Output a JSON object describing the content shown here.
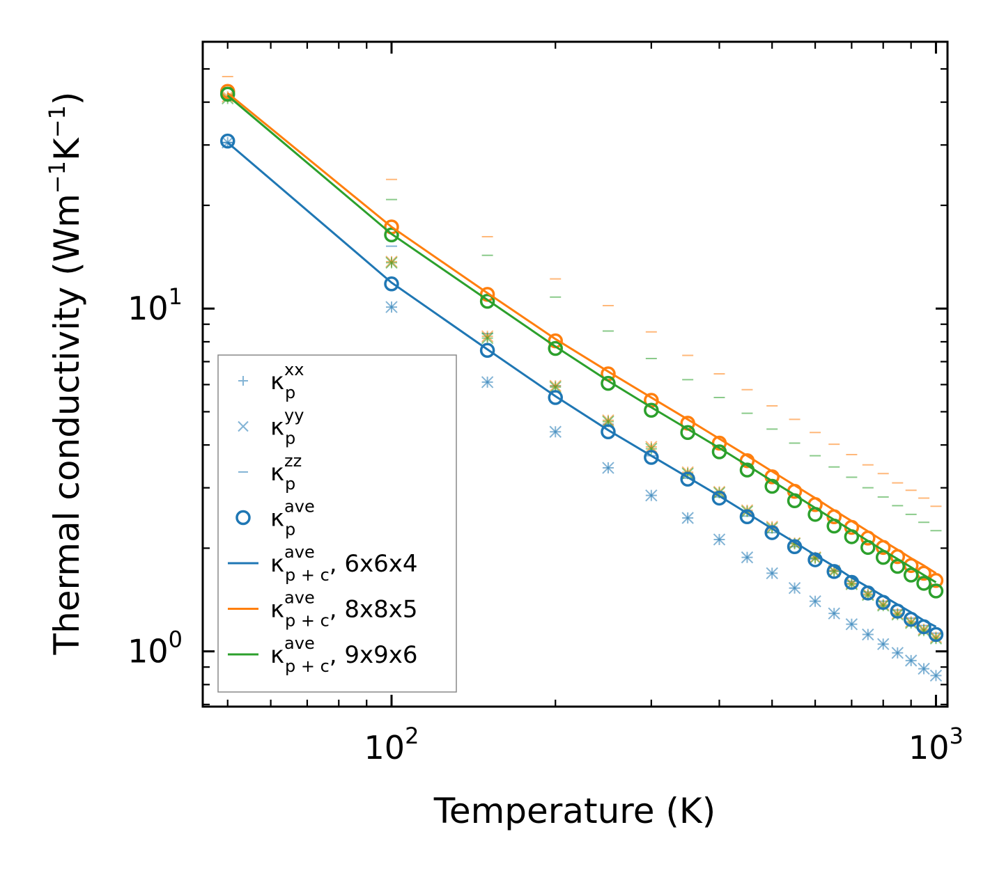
{
  "chart_data": {
    "type": "scatter",
    "title": "",
    "xlabel": "Temperature (K)",
    "ylabel": {
      "base": "Thermal conductivity (Wm",
      "exp1": "−1",
      "mid": "K",
      "exp2": "−1",
      "end": ")"
    },
    "xscale": "log",
    "yscale": "log",
    "xlim": [
      45,
      1050
    ],
    "ylim": [
      0.69,
      60
    ],
    "xticks": [
      {
        "base": "10",
        "exp": "2",
        "value": 100
      },
      {
        "base": "10",
        "exp": "3",
        "value": 1000
      }
    ],
    "yticks": [
      {
        "base": "10",
        "exp": "0",
        "value": 1
      },
      {
        "base": "10",
        "exp": "1",
        "value": 10
      }
    ],
    "temperatures": [
      50,
      100,
      150,
      200,
      250,
      300,
      350,
      400,
      450,
      500,
      550,
      600,
      650,
      700,
      750,
      800,
      850,
      900,
      950,
      1000
    ],
    "series": [
      {
        "name": "k_p^xx",
        "legend": {
          "base": "κ",
          "sub": "p",
          "sup": "xx",
          "suffix": ""
        },
        "marker": "plus",
        "color": "#1f77b4",
        "alpha": 0.55,
        "values": [
          30.5,
          10.1,
          6.1,
          4.37,
          3.43,
          2.85,
          2.45,
          2.12,
          1.88,
          1.69,
          1.53,
          1.4,
          1.29,
          1.2,
          1.12,
          1.05,
          0.99,
          0.94,
          0.89,
          0.85
        ]
      },
      {
        "name": "k_p^yy",
        "legend": {
          "base": "κ",
          "sub": "p",
          "sup": "yy",
          "suffix": ""
        },
        "marker": "x",
        "color": "#1f77b4",
        "alpha": 0.55,
        "values": [
          30.5,
          10.1,
          6.1,
          4.37,
          3.43,
          2.85,
          2.45,
          2.12,
          1.88,
          1.69,
          1.53,
          1.4,
          1.29,
          1.2,
          1.12,
          1.05,
          0.99,
          0.94,
          0.89,
          0.85
        ]
      },
      {
        "name": "k_p^zz",
        "legend": {
          "base": "κ",
          "sub": "p",
          "sup": "zz",
          "suffix": ""
        },
        "marker": "hline",
        "color": "#1f77b4",
        "alpha": 0.55,
        "values": [
          30.5,
          15.2,
          8.45,
          5.95,
          4.6,
          3.72,
          3.2,
          2.82,
          2.48,
          2.22,
          2.02,
          1.86,
          1.72,
          1.6,
          1.49,
          1.4,
          1.32,
          1.25,
          1.19,
          1.13
        ]
      },
      {
        "name": "k_p^ave",
        "legend": {
          "base": "κ",
          "sub": "p",
          "sup": "ave",
          "suffix": ""
        },
        "marker": "circle",
        "color": "#1f77b4",
        "alpha": 1,
        "values": [
          30.8,
          11.8,
          7.55,
          5.5,
          4.37,
          3.68,
          3.18,
          2.8,
          2.47,
          2.22,
          2.02,
          1.85,
          1.71,
          1.59,
          1.48,
          1.39,
          1.31,
          1.24,
          1.18,
          1.12
        ]
      },
      {
        "name": "k_p^xx 8x8x5",
        "marker": "plus",
        "color": "#ff7f0e",
        "alpha": 0.55,
        "in_legend": false,
        "values": [
          41.5,
          13.7,
          8.3,
          5.95,
          4.72,
          3.95,
          3.33,
          2.92,
          2.58,
          2.31,
          2.07,
          1.88,
          1.72,
          1.58,
          1.47,
          1.37,
          1.29,
          1.22,
          1.16,
          1.1
        ]
      },
      {
        "name": "k_p^yy 8x8x5",
        "marker": "x",
        "color": "#ff7f0e",
        "alpha": 0.55,
        "in_legend": false,
        "values": [
          41.5,
          13.7,
          8.3,
          5.95,
          4.72,
          3.95,
          3.33,
          2.92,
          2.58,
          2.31,
          2.07,
          1.88,
          1.72,
          1.58,
          1.47,
          1.37,
          1.29,
          1.22,
          1.16,
          1.1
        ]
      },
      {
        "name": "k_p^zz 8x8x5",
        "marker": "hline",
        "color": "#ff7f0e",
        "alpha": 0.55,
        "in_legend": false,
        "values": [
          47.5,
          23.8,
          16.2,
          12.2,
          10.2,
          8.55,
          7.3,
          6.45,
          5.8,
          5.2,
          4.75,
          4.35,
          4.02,
          3.75,
          3.5,
          3.3,
          3.1,
          2.95,
          2.8,
          2.65
        ]
      },
      {
        "name": "k_p^ave 8x8x5",
        "marker": "circle",
        "color": "#ff7f0e",
        "alpha": 1,
        "in_legend": false,
        "values": [
          43.0,
          17.3,
          11.0,
          8.05,
          6.45,
          5.4,
          4.63,
          4.05,
          3.6,
          3.23,
          2.93,
          2.68,
          2.47,
          2.3,
          2.14,
          2.01,
          1.89,
          1.78,
          1.69,
          1.61
        ]
      },
      {
        "name": "k_p^xx 9x9x6",
        "marker": "plus",
        "color": "#2ca02c",
        "alpha": 0.55,
        "in_legend": false,
        "values": [
          41.0,
          13.6,
          8.2,
          5.9,
          4.68,
          3.9,
          3.3,
          2.9,
          2.56,
          2.29,
          2.06,
          1.87,
          1.71,
          1.57,
          1.46,
          1.36,
          1.28,
          1.21,
          1.15,
          1.09
        ]
      },
      {
        "name": "k_p^yy 9x9x6",
        "marker": "x",
        "color": "#2ca02c",
        "alpha": 0.55,
        "in_legend": false,
        "values": [
          41.0,
          13.6,
          8.2,
          5.9,
          4.68,
          3.9,
          3.3,
          2.9,
          2.56,
          2.29,
          2.06,
          1.87,
          1.71,
          1.57,
          1.46,
          1.36,
          1.28,
          1.21,
          1.15,
          1.09
        ]
      },
      {
        "name": "k_p^zz 9x9x6",
        "marker": "hline",
        "color": "#2ca02c",
        "alpha": 0.55,
        "in_legend": false,
        "values": [
          44.0,
          20.8,
          14.3,
          10.8,
          8.6,
          7.15,
          6.2,
          5.5,
          4.95,
          4.45,
          4.05,
          3.72,
          3.45,
          3.22,
          3.0,
          2.82,
          2.66,
          2.51,
          2.38,
          2.25
        ]
      },
      {
        "name": "k_p^ave 9x9x6",
        "marker": "circle",
        "color": "#2ca02c",
        "alpha": 1,
        "in_legend": false,
        "values": [
          42.2,
          16.4,
          10.5,
          7.65,
          6.05,
          5.05,
          4.35,
          3.82,
          3.38,
          3.03,
          2.75,
          2.51,
          2.32,
          2.16,
          2.01,
          1.88,
          1.77,
          1.67,
          1.58,
          1.5
        ]
      },
      {
        "name": "k_p+c^ave, 6x6x4",
        "legend": {
          "base": "κ",
          "sub": "p + c",
          "sup": "ave",
          "suffix": ", 6x6x4"
        },
        "marker": "line",
        "color": "#1f77b4",
        "alpha": 1,
        "values": [
          30.5,
          11.9,
          7.6,
          5.55,
          4.42,
          3.72,
          3.22,
          2.84,
          2.53,
          2.28,
          2.08,
          1.91,
          1.77,
          1.64,
          1.54,
          1.45,
          1.37,
          1.3,
          1.23,
          1.18
        ]
      },
      {
        "name": "k_p+c^ave, 8x8x5",
        "legend": {
          "base": "κ",
          "sub": "p + c",
          "sup": "ave",
          "suffix": ", 8x8x5"
        },
        "marker": "line",
        "color": "#ff7f0e",
        "alpha": 1,
        "values": [
          42.5,
          17.3,
          11.1,
          8.15,
          6.55,
          5.5,
          4.75,
          4.17,
          3.72,
          3.35,
          3.05,
          2.8,
          2.58,
          2.4,
          2.24,
          2.1,
          1.98,
          1.87,
          1.78,
          1.69
        ]
      },
      {
        "name": "k_p+c^ave, 9x9x6",
        "legend": {
          "base": "κ",
          "sub": "p + c",
          "sup": "ave",
          "suffix": ", 9x9x6"
        },
        "marker": "line",
        "color": "#2ca02c",
        "alpha": 1,
        "values": [
          41.8,
          16.5,
          10.6,
          7.75,
          6.15,
          5.15,
          4.45,
          3.92,
          3.49,
          3.14,
          2.86,
          2.62,
          2.42,
          2.25,
          2.1,
          1.97,
          1.86,
          1.76,
          1.67,
          1.59
        ]
      }
    ],
    "legend_position": "lower-left",
    "grid": false
  }
}
